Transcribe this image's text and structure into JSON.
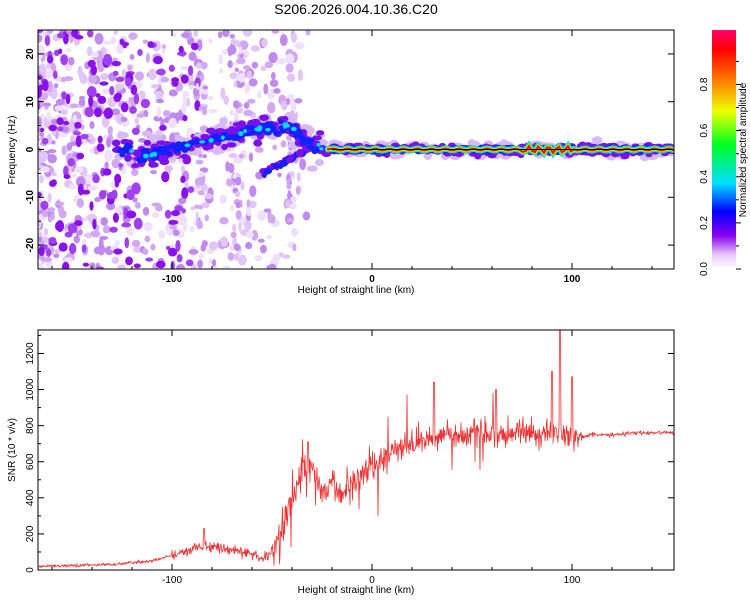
{
  "title": "S206.2026.004.10.36.C20",
  "chart_data": [
    {
      "type": "heatmap",
      "xlabel": "Height of straight line (km)",
      "ylabel": "Frequency (Hz)",
      "xlim": [
        -167,
        151
      ],
      "ylim": [
        -25,
        25
      ],
      "xticks": [
        -100,
        0,
        100
      ],
      "yticks": [
        -20,
        -10,
        0,
        10,
        20
      ],
      "colorbar": {
        "label": "Normalized spectral amplitude",
        "range": [
          0,
          1
        ],
        "ticks": [
          "0.0",
          "0.2",
          "0.4",
          "0.6",
          "0.8"
        ]
      },
      "ridge": [
        {
          "x": -120,
          "y": -2
        },
        {
          "x": -100,
          "y": 0
        },
        {
          "x": -80,
          "y": 2
        },
        {
          "x": -60,
          "y": 4
        },
        {
          "x": -42,
          "y": 5
        },
        {
          "x": -30,
          "y": 1
        },
        {
          "x": -20,
          "y": 0
        },
        {
          "x": 0,
          "y": 0
        },
        {
          "x": 50,
          "y": 0
        },
        {
          "x": 100,
          "y": 0
        },
        {
          "x": 150,
          "y": 0
        }
      ],
      "fitted_line_frequency_hz": 0
    },
    {
      "type": "line",
      "xlabel": "Height of straight line (km)",
      "ylabel": "SNR (10 * v/v)",
      "xlim": [
        -167,
        151
      ],
      "ylim": [
        0,
        1330
      ],
      "xticks": [
        -100,
        0,
        100
      ],
      "yticks": [
        0,
        200,
        400,
        600,
        800,
        1000,
        1200
      ],
      "color": "#ee3333",
      "series": [
        {
          "x": [
            -167,
            -150,
            -130,
            -110,
            -100,
            -90,
            -80,
            -70,
            -60,
            -55,
            -50,
            -45,
            -40,
            -35,
            -30,
            -25,
            -20,
            -15,
            -10,
            -5,
            0,
            5,
            10,
            15,
            20,
            25,
            30,
            35,
            40,
            45,
            50,
            55,
            60,
            65,
            70,
            75,
            80,
            85,
            90,
            95,
            100,
            105,
            110,
            120,
            130,
            140,
            151
          ],
          "values": [
            20,
            25,
            30,
            50,
            80,
            120,
            130,
            110,
            90,
            60,
            100,
            200,
            400,
            550,
            560,
            430,
            480,
            420,
            500,
            550,
            590,
            600,
            650,
            680,
            700,
            720,
            730,
            760,
            750,
            740,
            760,
            760,
            750,
            740,
            770,
            760,
            760,
            740,
            760,
            760,
            750,
            740,
            750,
            750,
            760,
            760,
            760
          ],
          "peaks": [
            {
              "x": -84,
              "y": 230
            },
            {
              "x": -32,
              "y": 710
            },
            {
              "x": 21,
              "y": 660
            },
            {
              "x": 31,
              "y": 1040
            },
            {
              "x": 62,
              "y": 1000
            },
            {
              "x": 90,
              "y": 1100
            },
            {
              "x": 94,
              "y": 1330
            },
            {
              "x": 100,
              "y": 1070
            }
          ]
        }
      ]
    }
  ]
}
